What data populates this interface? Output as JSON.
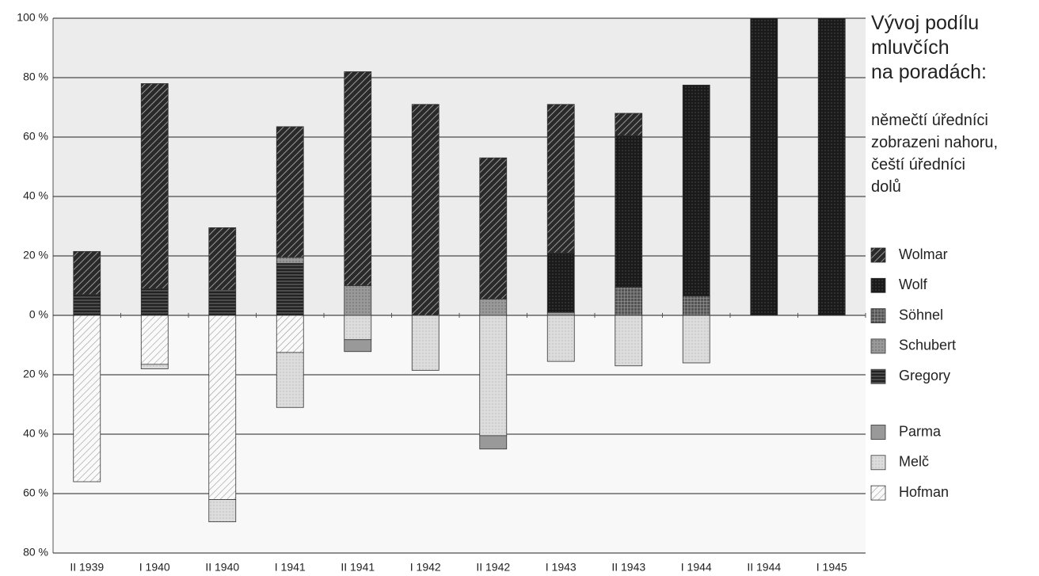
{
  "chart_data": {
    "type": "bar",
    "stacked": true,
    "title": "Vývoj podílu\nmluvčích\nna poradách:",
    "subtitle": "němečtí úředníci\nzobrazeni nahoru,\nčeští úředníci\ndolů",
    "categories": [
      "II 1939",
      "I 1940",
      "II 1940",
      "I 1941",
      "II 1941",
      "I 1942",
      "II 1942",
      "I 1943",
      "II 1943",
      "I 1944",
      "II 1944",
      "I 1945"
    ],
    "series": [
      {
        "name": "Wolmar",
        "color": "#333333",
        "pattern": "hatch-dark",
        "values": [
          14.5,
          69,
          21,
          44,
          72,
          71,
          47.5,
          50,
          7.5,
          0,
          0,
          0
        ]
      },
      {
        "name": "Wolf",
        "color": "#1a1a1a",
        "pattern": "dots-dark",
        "values": [
          0,
          0,
          0,
          0,
          0,
          0,
          0,
          20,
          51,
          71,
          100,
          100
        ]
      },
      {
        "name": "Söhnel",
        "color": "#666666",
        "pattern": "grid",
        "values": [
          0,
          0,
          0,
          0,
          0,
          0,
          0,
          0,
          9.5,
          6.5,
          0,
          0
        ]
      },
      {
        "name": "Schubert",
        "color": "#999999",
        "pattern": "dots-mid",
        "values": [
          0,
          0,
          0,
          2,
          10,
          0,
          5.5,
          1,
          0,
          0,
          0,
          0
        ]
      },
      {
        "name": "Gregory",
        "color": "#222222",
        "pattern": "lines",
        "values": [
          7,
          9,
          8.5,
          17.5,
          0,
          0,
          0,
          0,
          0,
          0,
          0,
          0
        ]
      },
      {
        "name": "Parma",
        "color": "#999999",
        "pattern": "plain",
        "values": [
          0,
          0,
          0,
          0,
          -4,
          0,
          -4.5,
          0,
          0,
          0,
          0,
          0
        ]
      },
      {
        "name": "Melč",
        "color": "#dddddd",
        "pattern": "dots-light",
        "values": [
          0,
          -1.5,
          -7.5,
          -18.5,
          -8.2,
          -18.5,
          -40.5,
          -15.5,
          -17,
          -16,
          0,
          0
        ]
      },
      {
        "name": "Hofman",
        "color": "#ffffff",
        "pattern": "hatch-light",
        "values": [
          -56,
          -16.5,
          -62,
          -12.5,
          0,
          0,
          0,
          0,
          0,
          0,
          0,
          0
        ]
      }
    ],
    "ylim": [
      -80,
      100
    ],
    "yticks": [
      {
        "value": -80,
        "label": "80 %"
      },
      {
        "value": -60,
        "label": "60 %"
      },
      {
        "value": -40,
        "label": "40 %"
      },
      {
        "value": -20,
        "label": "20 %"
      },
      {
        "value": 0,
        "label": "0 %"
      },
      {
        "value": 20,
        "label": "20 %"
      },
      {
        "value": 40,
        "label": "40 %"
      },
      {
        "value": 60,
        "label": "60 %"
      },
      {
        "value": 80,
        "label": "80 %"
      },
      {
        "value": 100,
        "label": "100 %"
      }
    ],
    "grid": true
  }
}
